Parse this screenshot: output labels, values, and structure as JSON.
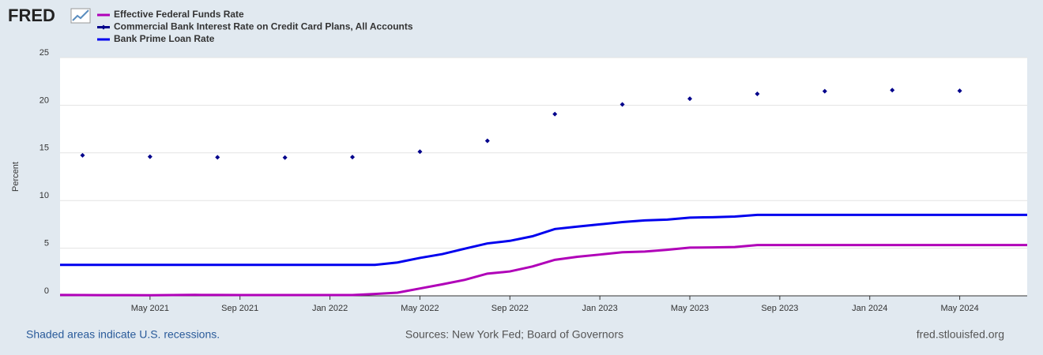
{
  "chart_data": {
    "type": "line",
    "logo": "FRED",
    "y_label": "Percent",
    "x": [
      "2021-01",
      "2021-02",
      "2021-03",
      "2021-04",
      "2021-05",
      "2021-06",
      "2021-07",
      "2021-08",
      "2021-09",
      "2021-10",
      "2021-11",
      "2021-12",
      "2022-01",
      "2022-02",
      "2022-03",
      "2022-04",
      "2022-05",
      "2022-06",
      "2022-07",
      "2022-08",
      "2022-09",
      "2022-10",
      "2022-11",
      "2022-12",
      "2023-01",
      "2023-02",
      "2023-03",
      "2023-04",
      "2023-05",
      "2023-06",
      "2023-07",
      "2023-08",
      "2023-09",
      "2023-10",
      "2023-11",
      "2023-12",
      "2024-01",
      "2024-02",
      "2024-03",
      "2024-04",
      "2024-05",
      "2024-06",
      "2024-07",
      "2024-08"
    ],
    "xlim": [
      "2021-01",
      "2024-08"
    ],
    "xticks": [
      {
        "value": "2021-05",
        "label": "May 2021"
      },
      {
        "value": "2021-09",
        "label": "Sep 2021"
      },
      {
        "value": "2022-01",
        "label": "Jan 2022"
      },
      {
        "value": "2022-05",
        "label": "May 2022"
      },
      {
        "value": "2022-09",
        "label": "Sep 2022"
      },
      {
        "value": "2023-01",
        "label": "Jan 2023"
      },
      {
        "value": "2023-05",
        "label": "May 2023"
      },
      {
        "value": "2023-09",
        "label": "Sep 2023"
      },
      {
        "value": "2024-01",
        "label": "Jan 2024"
      },
      {
        "value": "2024-05",
        "label": "May 2024"
      }
    ],
    "ylim": [
      0,
      25
    ],
    "yticks": [
      0,
      5,
      10,
      15,
      20,
      25
    ],
    "grid": true,
    "series": [
      {
        "name": "Effective Federal Funds Rate",
        "color": "#b000b8",
        "marker": false,
        "values": [
          0.09,
          0.08,
          0.07,
          0.07,
          0.06,
          0.08,
          0.1,
          0.09,
          0.08,
          0.08,
          0.08,
          0.08,
          0.08,
          0.08,
          0.2,
          0.33,
          0.77,
          1.21,
          1.68,
          2.33,
          2.56,
          3.08,
          3.78,
          4.1,
          4.33,
          4.57,
          4.65,
          4.83,
          5.06,
          5.08,
          5.12,
          5.33,
          5.33,
          5.33,
          5.33,
          5.33,
          5.33,
          5.33,
          5.33,
          5.33,
          5.33,
          5.33,
          5.33,
          5.33
        ]
      },
      {
        "name": "Commercial Bank Interest Rate on Credit Card Plans, All Accounts",
        "color": "#00008b",
        "marker": true,
        "values": [
          null,
          14.75,
          null,
          null,
          14.6,
          null,
          null,
          14.54,
          null,
          null,
          14.51,
          null,
          null,
          14.56,
          null,
          null,
          15.13,
          null,
          null,
          16.27,
          null,
          null,
          19.07,
          null,
          null,
          20.09,
          null,
          null,
          20.68,
          null,
          null,
          21.19,
          null,
          null,
          21.47,
          null,
          null,
          21.59,
          null,
          null,
          21.51,
          null,
          null,
          null
        ]
      },
      {
        "name": "Bank Prime Loan Rate",
        "color": "#0000ee",
        "marker": false,
        "values": [
          3.25,
          3.25,
          3.25,
          3.25,
          3.25,
          3.25,
          3.25,
          3.25,
          3.25,
          3.25,
          3.25,
          3.25,
          3.25,
          3.25,
          3.25,
          3.5,
          3.98,
          4.38,
          4.95,
          5.5,
          5.77,
          6.25,
          7.01,
          7.26,
          7.5,
          7.74,
          7.92,
          8.0,
          8.21,
          8.25,
          8.32,
          8.5,
          8.5,
          8.5,
          8.5,
          8.5,
          8.5,
          8.5,
          8.5,
          8.5,
          8.5,
          8.5,
          8.5,
          8.5
        ]
      }
    ],
    "note": "Shaded areas indicate U.S. recessions.",
    "source": "Sources: New York Fed; Board of Governors",
    "credit": "fred.stlouisfed.org"
  }
}
